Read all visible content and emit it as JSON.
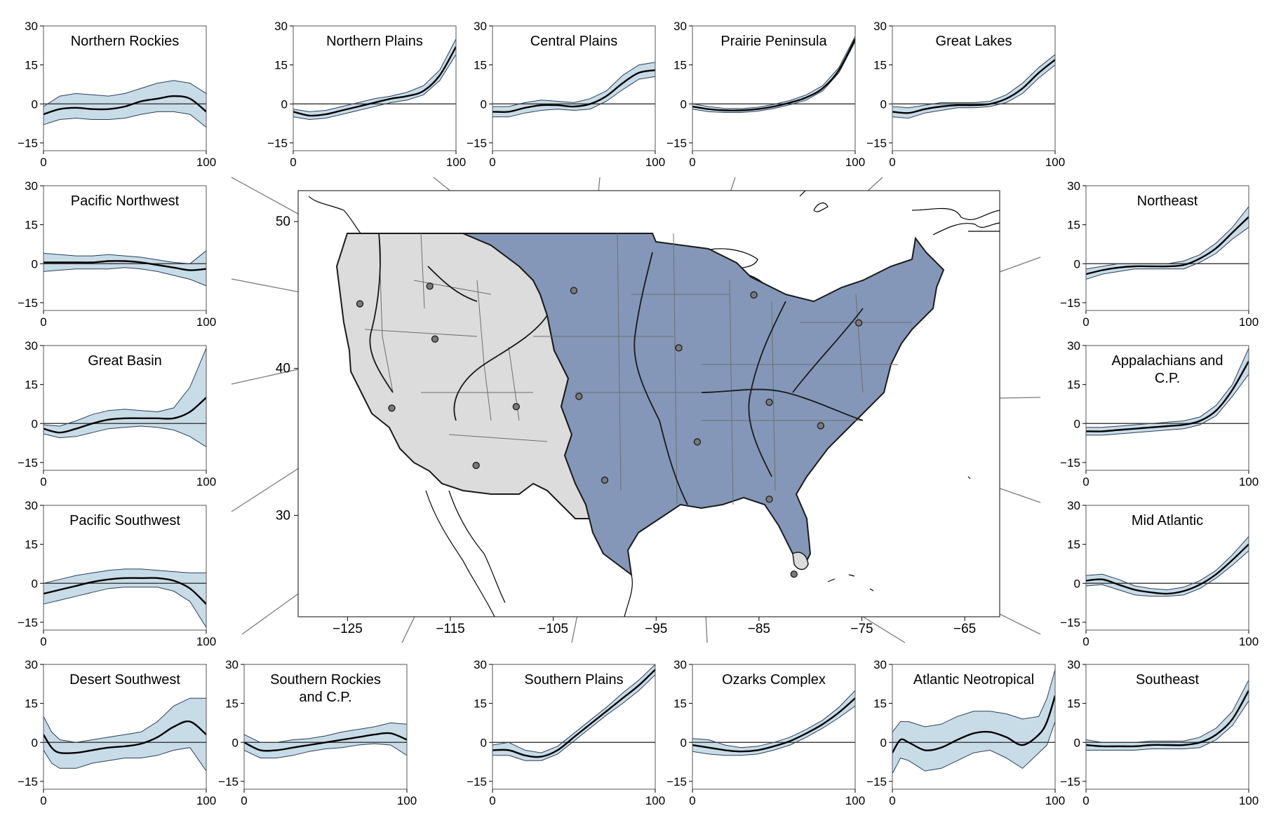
{
  "figure": {
    "map": {
      "lon_ticks": [
        "−125",
        "−115",
        "−105",
        "−95",
        "−85",
        "−75",
        "−65"
      ],
      "lat_ticks": [
        "50",
        "40",
        "30"
      ],
      "colors": {
        "east": "#8497b8",
        "west": "#dcdcdc",
        "border": "#1a1a1a",
        "internal": "#6e6e6e",
        "site_marker": "#7a7a7a"
      }
    },
    "style": {
      "band_color": "#c8dce8",
      "band_edge": "#2a3f58",
      "line_color": "#000000",
      "leader_color": "#7a7a7a"
    }
  },
  "chart_data": [
    {
      "id": "northern-rockies",
      "type": "line",
      "title": "Northern Rockies",
      "xlim": [
        0,
        100
      ],
      "ylim": [
        -18,
        30
      ],
      "x_ticks": [
        "0",
        "100"
      ],
      "y_ticks": [
        "30",
        "15",
        "0",
        "−15"
      ],
      "grid": false,
      "x": [
        0,
        10,
        20,
        30,
        40,
        50,
        60,
        70,
        80,
        90,
        100
      ],
      "y": [
        -4,
        -2,
        -1.5,
        -2,
        -2,
        -1,
        1,
        2,
        3,
        2,
        -3
      ],
      "band_upper": [
        -1,
        3,
        4,
        3.5,
        3,
        4,
        6,
        8,
        9,
        8,
        4
      ],
      "band_lower": [
        -8,
        -6,
        -5.5,
        -6,
        -6,
        -5.5,
        -4,
        -3,
        -3,
        -4,
        -9
      ]
    },
    {
      "id": "northern-plains",
      "type": "line",
      "title": "Northern Plains",
      "xlim": [
        0,
        100
      ],
      "ylim": [
        -18,
        30
      ],
      "x_ticks": [
        "0",
        "100"
      ],
      "y_ticks": [
        "30",
        "15",
        "0",
        "−15"
      ],
      "grid": false,
      "x": [
        0,
        10,
        20,
        30,
        40,
        50,
        60,
        70,
        80,
        90,
        100
      ],
      "y": [
        -3,
        -4.5,
        -4,
        -2.5,
        -1,
        0.5,
        2,
        3,
        5,
        11,
        22
      ],
      "band_upper": [
        -2,
        -3,
        -2.5,
        -1,
        0.5,
        2,
        3,
        4.5,
        7,
        13,
        25
      ],
      "band_lower": [
        -5,
        -6,
        -5.5,
        -4,
        -2.5,
        -1,
        0.5,
        1.5,
        3.5,
        9,
        19
      ]
    },
    {
      "id": "central-plains",
      "type": "line",
      "title": "Central Plains",
      "xlim": [
        0,
        100
      ],
      "ylim": [
        -18,
        30
      ],
      "x_ticks": [
        "0",
        "100"
      ],
      "y_ticks": [
        "30",
        "15",
        "0",
        "−15"
      ],
      "grid": false,
      "x": [
        0,
        10,
        20,
        30,
        40,
        50,
        60,
        70,
        80,
        90,
        100
      ],
      "y": [
        -3,
        -3,
        -1.5,
        -0.5,
        -0.5,
        -1,
        0,
        3,
        8,
        12,
        13
      ],
      "band_upper": [
        -1,
        -1,
        0.5,
        1.5,
        1,
        0.5,
        2,
        5,
        11,
        15,
        16
      ],
      "band_lower": [
        -5,
        -5,
        -3.5,
        -2.5,
        -2,
        -2.5,
        -2,
        1,
        5.5,
        9.5,
        10.5
      ]
    },
    {
      "id": "prairie-peninsula",
      "type": "line",
      "title": "Prairie Peninsula",
      "xlim": [
        0,
        100
      ],
      "ylim": [
        -18,
        30
      ],
      "x_ticks": [
        "0",
        "100"
      ],
      "y_ticks": [
        "30",
        "15",
        "0",
        "−15"
      ],
      "grid": false,
      "x": [
        0,
        10,
        20,
        30,
        40,
        50,
        60,
        70,
        80,
        90,
        100
      ],
      "y": [
        -1,
        -2,
        -2.5,
        -2.5,
        -2,
        -1,
        0.5,
        2.5,
        6,
        13,
        25
      ],
      "band_upper": [
        0,
        -1,
        -1.8,
        -1.8,
        -1.3,
        -0.2,
        1.3,
        3.5,
        7,
        14,
        26
      ],
      "band_lower": [
        -2,
        -3,
        -3.3,
        -3.3,
        -2.8,
        -1.8,
        -0.3,
        1.5,
        5,
        12,
        24
      ]
    },
    {
      "id": "great-lakes",
      "type": "line",
      "title": "Great Lakes",
      "xlim": [
        0,
        100
      ],
      "ylim": [
        -18,
        30
      ],
      "x_ticks": [
        "0",
        "100"
      ],
      "y_ticks": [
        "30",
        "15",
        "0",
        "−15"
      ],
      "grid": false,
      "x": [
        0,
        10,
        20,
        30,
        40,
        50,
        60,
        70,
        80,
        90,
        100
      ],
      "y": [
        -3,
        -3.5,
        -2,
        -1,
        -0.5,
        -0.5,
        0,
        2,
        6,
        12,
        17
      ],
      "band_upper": [
        -1,
        -1.5,
        -0.5,
        0.5,
        0.5,
        0.5,
        1,
        3.5,
        8,
        14,
        19
      ],
      "band_lower": [
        -5,
        -5.5,
        -3.5,
        -2.5,
        -1.5,
        -1.5,
        -1,
        0.5,
        4,
        10,
        15
      ]
    },
    {
      "id": "pacific-northwest",
      "type": "line",
      "title": "Pacific Northwest",
      "xlim": [
        0,
        100
      ],
      "ylim": [
        -18,
        30
      ],
      "x_ticks": [
        "0",
        "100"
      ],
      "y_ticks": [
        "30",
        "15",
        "0",
        "−15"
      ],
      "grid": false,
      "x": [
        0,
        10,
        20,
        30,
        40,
        50,
        60,
        70,
        80,
        90,
        100
      ],
      "y": [
        0.5,
        0.5,
        0.5,
        0.5,
        1,
        1,
        0.5,
        -0.5,
        -1.5,
        -2.5,
        -2
      ],
      "band_upper": [
        4,
        3.5,
        3,
        3,
        3.5,
        3,
        2.5,
        1.5,
        0.5,
        0,
        5
      ],
      "band_lower": [
        -3,
        -2.5,
        -2,
        -2,
        -2,
        -1.5,
        -2,
        -3,
        -4.5,
        -6,
        -8.5
      ]
    },
    {
      "id": "northeast",
      "type": "line",
      "title": "Northeast",
      "xlim": [
        0,
        100
      ],
      "ylim": [
        -18,
        30
      ],
      "x_ticks": [
        "0",
        "100"
      ],
      "y_ticks": [
        "30",
        "15",
        "0",
        "−15"
      ],
      "grid": false,
      "x": [
        0,
        10,
        20,
        30,
        40,
        50,
        60,
        70,
        80,
        90,
        100
      ],
      "y": [
        -4,
        -2.5,
        -1.5,
        -1,
        -1,
        -1,
        -0.5,
        2,
        6,
        12,
        18
      ],
      "band_upper": [
        -2,
        -1,
        0,
        0,
        0,
        0,
        1,
        3.5,
        8,
        14,
        22
      ],
      "band_lower": [
        -6,
        -4,
        -3,
        -2,
        -2,
        -2,
        -2,
        0.5,
        4,
        9.5,
        14
      ]
    },
    {
      "id": "great-basin",
      "type": "line",
      "title": "Great Basin",
      "xlim": [
        0,
        100
      ],
      "ylim": [
        -18,
        30
      ],
      "x_ticks": [
        "0",
        "100"
      ],
      "y_ticks": [
        "30",
        "15",
        "0",
        "−15"
      ],
      "grid": false,
      "x": [
        0,
        10,
        20,
        30,
        40,
        50,
        60,
        70,
        80,
        90,
        100
      ],
      "y": [
        -2,
        -3.5,
        -2,
        0,
        1.5,
        2,
        2,
        2,
        2,
        4.5,
        10
      ],
      "band_upper": [
        -0.5,
        -1,
        1,
        3.5,
        5,
        5.5,
        5,
        4.5,
        6,
        14,
        29
      ],
      "band_lower": [
        -4,
        -5.5,
        -5,
        -3.5,
        -2,
        -1.5,
        -1,
        -1.5,
        -2.5,
        -5,
        -9
      ]
    },
    {
      "id": "appalachians-cp",
      "type": "line",
      "title": "Appalachians and\nC.P.",
      "xlim": [
        0,
        100
      ],
      "ylim": [
        -18,
        30
      ],
      "x_ticks": [
        "0",
        "100"
      ],
      "y_ticks": [
        "30",
        "15",
        "0",
        "−15"
      ],
      "grid": false,
      "x": [
        0,
        10,
        20,
        30,
        40,
        50,
        60,
        70,
        80,
        90,
        100
      ],
      "y": [
        -3,
        -3,
        -2.5,
        -2,
        -1.5,
        -1,
        -0.5,
        1,
        5,
        13,
        24
      ],
      "band_upper": [
        -1.5,
        -1.5,
        -1,
        -0.5,
        0,
        0.5,
        1,
        2.5,
        7,
        15,
        29
      ],
      "band_lower": [
        -4.5,
        -4.5,
        -4,
        -3.5,
        -3,
        -2.5,
        -2,
        -0.5,
        3,
        10.5,
        19
      ]
    },
    {
      "id": "pacific-southwest",
      "type": "line",
      "title": "Pacific Southwest",
      "xlim": [
        0,
        100
      ],
      "ylim": [
        -18,
        30
      ],
      "x_ticks": [
        "0",
        "100"
      ],
      "y_ticks": [
        "30",
        "15",
        "0",
        "−15"
      ],
      "grid": false,
      "x": [
        0,
        10,
        20,
        30,
        40,
        50,
        60,
        70,
        80,
        90,
        100
      ],
      "y": [
        -4,
        -2.5,
        -1,
        0.5,
        1.5,
        2,
        2,
        2,
        1,
        -2,
        -8
      ],
      "band_upper": [
        0,
        1.5,
        3,
        4,
        5,
        5.5,
        5.5,
        5,
        4.5,
        4,
        4
      ],
      "band_lower": [
        -8,
        -6.5,
        -5,
        -3.5,
        -2,
        -1.5,
        -1.5,
        -1.5,
        -3,
        -7,
        -17
      ]
    },
    {
      "id": "mid-atlantic",
      "type": "line",
      "title": "Mid Atlantic",
      "xlim": [
        0,
        100
      ],
      "ylim": [
        -18,
        30
      ],
      "x_ticks": [
        "0",
        "100"
      ],
      "y_ticks": [
        "30",
        "15",
        "0",
        "−15"
      ],
      "grid": false,
      "x": [
        0,
        10,
        20,
        30,
        40,
        50,
        60,
        70,
        80,
        90,
        100
      ],
      "y": [
        1,
        1.5,
        -0.5,
        -2.5,
        -3.5,
        -4,
        -3,
        -0.5,
        3.5,
        9,
        15
      ],
      "band_upper": [
        3,
        3.5,
        1.5,
        -1,
        -2,
        -2.5,
        -1.5,
        1,
        5,
        11,
        18
      ],
      "band_lower": [
        -1,
        -0.5,
        -2.5,
        -4.5,
        -5,
        -5,
        -4.5,
        -2,
        2,
        7,
        12.5
      ]
    },
    {
      "id": "desert-southwest",
      "type": "line",
      "title": "Desert Southwest",
      "xlim": [
        0,
        100
      ],
      "ylim": [
        -18,
        30
      ],
      "x_ticks": [
        "0",
        "100"
      ],
      "y_ticks": [
        "30",
        "15",
        "0",
        "−15"
      ],
      "grid": false,
      "x": [
        0,
        5,
        10,
        20,
        30,
        40,
        50,
        60,
        70,
        80,
        90,
        100
      ],
      "y": [
        3,
        -2,
        -4,
        -4,
        -3,
        -2,
        -1.5,
        -0.5,
        2,
        6,
        8,
        3
      ],
      "band_upper": [
        10,
        4,
        1,
        0,
        1,
        2,
        3,
        4,
        8,
        14,
        17,
        17
      ],
      "band_lower": [
        -3,
        -8,
        -10,
        -10,
        -8,
        -7,
        -6,
        -6,
        -5,
        -3,
        -2,
        -11
      ]
    },
    {
      "id": "southern-rockies-cp",
      "type": "line",
      "title": "Southern Rockies\nand C.P.",
      "xlim": [
        0,
        100
      ],
      "ylim": [
        -18,
        30
      ],
      "x_ticks": [
        "0",
        "100"
      ],
      "y_ticks": [
        "30",
        "15",
        "0",
        "−15"
      ],
      "grid": false,
      "x": [
        0,
        10,
        20,
        30,
        40,
        50,
        60,
        70,
        80,
        90,
        100
      ],
      "y": [
        0,
        -3,
        -3,
        -2,
        -1,
        0,
        1,
        2,
        3,
        3.5,
        1
      ],
      "band_upper": [
        3,
        0,
        0,
        1,
        1.5,
        2.5,
        4,
        5,
        6,
        7.5,
        7
      ],
      "band_lower": [
        -3,
        -6,
        -6,
        -5,
        -3.5,
        -2.5,
        -2,
        -1,
        -0.5,
        -1,
        -5
      ]
    },
    {
      "id": "southern-plains",
      "type": "line",
      "title": "Southern Plains",
      "xlim": [
        0,
        100
      ],
      "ylim": [
        -18,
        30
      ],
      "x_ticks": [
        "0",
        "100"
      ],
      "y_ticks": [
        "30",
        "15",
        "0",
        "−15"
      ],
      "grid": false,
      "x": [
        0,
        10,
        20,
        30,
        40,
        50,
        60,
        70,
        80,
        90,
        100
      ],
      "y": [
        -3,
        -3,
        -5,
        -5.5,
        -3,
        2,
        7,
        12,
        17,
        22,
        28
      ],
      "band_upper": [
        -1,
        0,
        -3,
        -4,
        -1.5,
        3.5,
        8.5,
        13.5,
        19,
        24,
        30
      ],
      "band_lower": [
        -5,
        -5,
        -7,
        -7,
        -4.5,
        0.5,
        5.5,
        10.5,
        15,
        20,
        26
      ]
    },
    {
      "id": "ozarks-complex",
      "type": "line",
      "title": "Ozarks Complex",
      "xlim": [
        0,
        100
      ],
      "ylim": [
        -18,
        30
      ],
      "x_ticks": [
        "0",
        "100"
      ],
      "y_ticks": [
        "30",
        "15",
        "0",
        "−15"
      ],
      "grid": false,
      "x": [
        0,
        10,
        20,
        30,
        40,
        50,
        60,
        70,
        80,
        90,
        100
      ],
      "y": [
        -1,
        -2,
        -3,
        -3.5,
        -3,
        -1.5,
        0.5,
        3.5,
        7,
        11.5,
        17
      ],
      "band_upper": [
        1.5,
        1,
        -1,
        -2,
        -1.5,
        0,
        2,
        5,
        8.5,
        13.5,
        20
      ],
      "band_lower": [
        -3.5,
        -4.5,
        -5,
        -5,
        -4.5,
        -3,
        -1,
        2,
        5.5,
        9.5,
        14
      ]
    },
    {
      "id": "atlantic-neotropical",
      "type": "line",
      "title": "Atlantic Neotropical",
      "xlim": [
        0,
        100
      ],
      "ylim": [
        -18,
        30
      ],
      "x_ticks": [
        "0",
        "100"
      ],
      "y_ticks": [
        "30",
        "15",
        "0",
        "−15"
      ],
      "grid": false,
      "x": [
        0,
        5,
        10,
        20,
        30,
        40,
        50,
        60,
        70,
        80,
        90,
        95,
        100
      ],
      "y": [
        -4,
        1,
        0,
        -3,
        -2,
        1,
        3.5,
        4,
        2,
        -1,
        3,
        8,
        18
      ],
      "band_upper": [
        4,
        8,
        8,
        6,
        7,
        10,
        12,
        12,
        11,
        9,
        10,
        17,
        28
      ],
      "band_lower": [
        -12,
        -6,
        -7,
        -11,
        -10,
        -7,
        -4,
        -3,
        -6,
        -10,
        -4,
        -1,
        8
      ]
    },
    {
      "id": "southeast",
      "type": "line",
      "title": "Southeast",
      "xlim": [
        0,
        100
      ],
      "ylim": [
        -18,
        30
      ],
      "x_ticks": [
        "0",
        "100"
      ],
      "y_ticks": [
        "30",
        "15",
        "0",
        "−15"
      ],
      "grid": false,
      "x": [
        0,
        10,
        20,
        30,
        40,
        50,
        60,
        70,
        80,
        90,
        100
      ],
      "y": [
        -1,
        -1.5,
        -1.5,
        -1.5,
        -1,
        -1,
        -1,
        0,
        3,
        9,
        20
      ],
      "band_upper": [
        1,
        0,
        0,
        0,
        0.5,
        0.5,
        0.5,
        2,
        5.5,
        12,
        24
      ],
      "band_lower": [
        -3,
        -3,
        -3,
        -3,
        -2.5,
        -2.5,
        -2.5,
        -2,
        1,
        6.5,
        16
      ]
    }
  ]
}
